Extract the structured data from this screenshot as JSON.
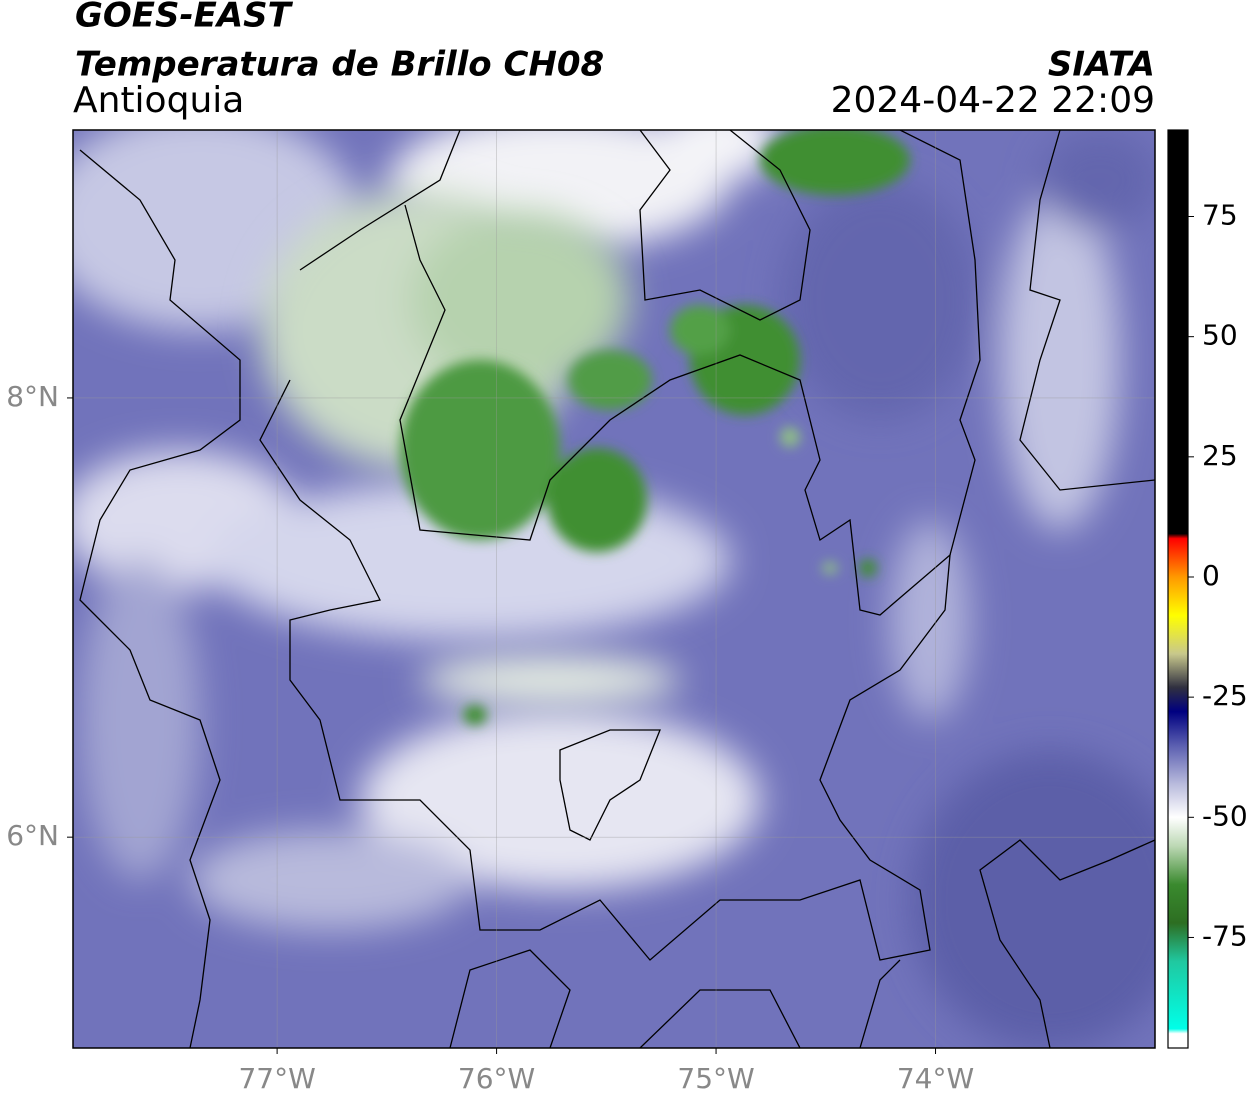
{
  "header": {
    "satellite": "GOES-EAST",
    "product": "Temperatura de Brillo CH08",
    "region": "Antioquia",
    "source": "SIATA",
    "datetime": "2024-04-22 22:09"
  },
  "map": {
    "xlim": [
      -77.93,
      -73.0
    ],
    "ylim": [
      5.04,
      9.22
    ],
    "xticks": [
      {
        "value": -77,
        "label": "77°W"
      },
      {
        "value": -76,
        "label": "76°W"
      },
      {
        "value": -75,
        "label": "75°W"
      },
      {
        "value": -74,
        "label": "74°W"
      }
    ],
    "yticks": [
      {
        "value": 6,
        "label": "6°N"
      },
      {
        "value": 8,
        "label": "8°N"
      }
    ],
    "grid": true
  },
  "colorbar": {
    "lim": [
      -98,
      93
    ],
    "ticks": [
      75,
      50,
      25,
      0,
      -25,
      -50,
      -75
    ],
    "colormap": [
      {
        "value": 93,
        "color": "#000000"
      },
      {
        "value": 9,
        "color": "#000000"
      },
      {
        "value": 8,
        "color": "#ff0000"
      },
      {
        "value": 0,
        "color": "#ff9900"
      },
      {
        "value": -8,
        "color": "#ffff00"
      },
      {
        "value": -16,
        "color": "#c8c88c"
      },
      {
        "value": -23,
        "color": "#303040"
      },
      {
        "value": -28,
        "color": "#000080"
      },
      {
        "value": -35,
        "color": "#5a5eb0"
      },
      {
        "value": -43,
        "color": "#b8badc"
      },
      {
        "value": -50,
        "color": "#ffffff"
      },
      {
        "value": -56,
        "color": "#bcd8b4"
      },
      {
        "value": -64,
        "color": "#3a8a2e"
      },
      {
        "value": -72,
        "color": "#2d6e22"
      },
      {
        "value": -80,
        "color": "#20c8a0"
      },
      {
        "value": -94,
        "color": "#00ffe8"
      },
      {
        "value": -95,
        "color": "#ffffff"
      },
      {
        "value": -98,
        "color": "#ffffff"
      }
    ]
  }
}
